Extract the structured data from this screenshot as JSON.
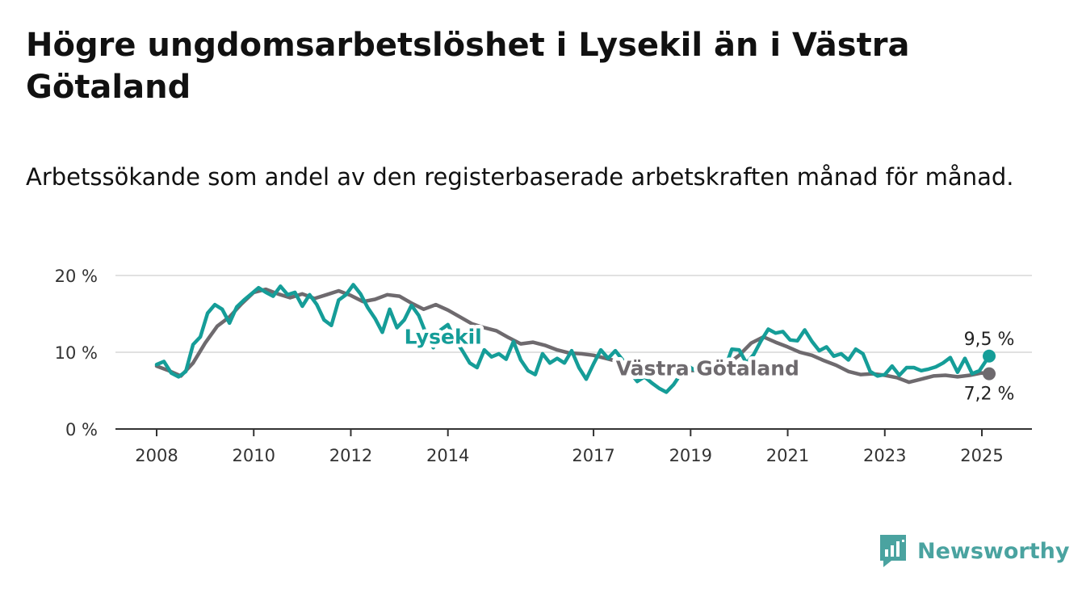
{
  "header": {
    "title": "Högre ungdomsarbetslöshet i Lysekil än i Västra Götaland",
    "subtitle": "Arbetssökande som andel av den registerbaserade arbetskraften månad för månad."
  },
  "brand": {
    "name": "Newsworthy",
    "icon": "bar-chart-logo-icon",
    "color": "#4aa3a0"
  },
  "chart_data": {
    "type": "line",
    "x_unit": "year",
    "y_unit": "percent",
    "ylim": [
      0,
      20
    ],
    "y_ticks": [
      {
        "value": 0,
        "label": "0 %"
      },
      {
        "value": 10,
        "label": "10 %"
      },
      {
        "value": 20,
        "label": "20 %"
      }
    ],
    "x_ticks": [
      {
        "value": 2008,
        "label": "2008"
      },
      {
        "value": 2010,
        "label": "2010"
      },
      {
        "value": 2012,
        "label": "2012"
      },
      {
        "value": 2014,
        "label": "2014"
      },
      {
        "value": 2017,
        "label": "2017"
      },
      {
        "value": 2019,
        "label": "2019"
      },
      {
        "value": 2021,
        "label": "2021"
      },
      {
        "value": 2023,
        "label": "2023"
      },
      {
        "value": 2025,
        "label": "2025"
      }
    ],
    "grid": true,
    "series": [
      {
        "name": "Västra Götaland",
        "color": "#6e6a6e",
        "end_label": "7,2 %",
        "x": [
          2008.0,
          2008.25,
          2008.5,
          2008.75,
          2009.0,
          2009.25,
          2009.5,
          2009.75,
          2010.0,
          2010.25,
          2010.5,
          2010.75,
          2011.0,
          2011.25,
          2011.5,
          2011.75,
          2012.0,
          2012.25,
          2012.5,
          2012.75,
          2013.0,
          2013.25,
          2013.5,
          2013.75,
          2014.0,
          2014.25,
          2014.5,
          2014.75,
          2015.0,
          2015.25,
          2015.5,
          2015.75,
          2016.0,
          2016.25,
          2016.5,
          2016.75,
          2017.0,
          2017.25,
          2017.5,
          2017.75,
          2018.0,
          2018.25,
          2018.5,
          2018.75,
          2019.0,
          2019.25,
          2019.5,
          2019.75,
          2020.0,
          2020.25,
          2020.5,
          2020.75,
          2021.0,
          2021.25,
          2021.5,
          2021.75,
          2022.0,
          2022.25,
          2022.5,
          2022.75,
          2023.0,
          2023.25,
          2023.5,
          2023.75,
          2024.0,
          2024.25,
          2024.5,
          2024.75,
          2025.0,
          2025.15
        ],
        "values": [
          8.2,
          7.6,
          6.9,
          8.6,
          11.2,
          13.4,
          14.6,
          16.3,
          17.8,
          18.2,
          17.6,
          17.1,
          17.6,
          17.0,
          17.5,
          18.0,
          17.4,
          16.6,
          16.9,
          17.5,
          17.3,
          16.4,
          15.6,
          16.2,
          15.5,
          14.6,
          13.7,
          13.2,
          12.8,
          11.9,
          11.1,
          11.3,
          10.9,
          10.3,
          9.9,
          9.8,
          9.6,
          9.2,
          8.8,
          8.5,
          8.2,
          7.9,
          7.5,
          7.4,
          7.6,
          7.7,
          7.9,
          8.4,
          9.6,
          11.2,
          12.0,
          11.3,
          10.7,
          10.0,
          9.6,
          8.9,
          8.3,
          7.5,
          7.1,
          7.2,
          7.0,
          6.7,
          6.1,
          6.5,
          6.9,
          7.0,
          6.8,
          7.0,
          7.3,
          7.2
        ]
      },
      {
        "name": "Lysekil",
        "color": "#159d98",
        "end_label": "9,5 %",
        "x": [
          2008.0,
          2008.15,
          2008.3,
          2008.45,
          2008.6,
          2008.75,
          2008.9,
          2009.05,
          2009.2,
          2009.35,
          2009.5,
          2009.65,
          2009.8,
          2009.95,
          2010.1,
          2010.25,
          2010.4,
          2010.55,
          2010.7,
          2010.85,
          2011.0,
          2011.15,
          2011.3,
          2011.45,
          2011.6,
          2011.75,
          2011.9,
          2012.05,
          2012.2,
          2012.35,
          2012.5,
          2012.65,
          2012.8,
          2012.95,
          2013.1,
          2013.25,
          2013.4,
          2013.55,
          2013.7,
          2013.85,
          2014.0,
          2014.15,
          2014.3,
          2014.45,
          2014.6,
          2014.75,
          2014.9,
          2015.05,
          2015.2,
          2015.35,
          2015.5,
          2015.65,
          2015.8,
          2015.95,
          2016.1,
          2016.25,
          2016.4,
          2016.55,
          2016.7,
          2016.85,
          2017.0,
          2017.15,
          2017.3,
          2017.45,
          2017.6,
          2017.75,
          2017.9,
          2018.05,
          2018.2,
          2018.35,
          2018.5,
          2018.65,
          2018.8,
          2018.95,
          2019.1,
          2019.25,
          2019.4,
          2019.55,
          2019.7,
          2019.85,
          2020.0,
          2020.15,
          2020.3,
          2020.45,
          2020.6,
          2020.75,
          2020.9,
          2021.05,
          2021.2,
          2021.35,
          2021.5,
          2021.65,
          2021.8,
          2021.95,
          2022.1,
          2022.25,
          2022.4,
          2022.55,
          2022.7,
          2022.85,
          2023.0,
          2023.15,
          2023.3,
          2023.45,
          2023.6,
          2023.75,
          2023.9,
          2024.05,
          2024.2,
          2024.35,
          2024.5,
          2024.65,
          2024.8,
          2024.95,
          2025.15
        ],
        "values": [
          8.4,
          8.8,
          7.3,
          6.8,
          7.5,
          11.0,
          12.0,
          15.1,
          16.2,
          15.6,
          13.8,
          15.9,
          16.8,
          17.6,
          18.4,
          17.8,
          17.3,
          18.6,
          17.5,
          17.8,
          16.0,
          17.5,
          16.2,
          14.2,
          13.5,
          16.8,
          17.5,
          18.8,
          17.6,
          15.8,
          14.4,
          12.6,
          15.6,
          13.2,
          14.2,
          16.1,
          14.8,
          12.4,
          10.6,
          12.9,
          13.6,
          11.6,
          10.2,
          8.6,
          8.0,
          10.3,
          9.4,
          9.8,
          9.1,
          11.4,
          9.0,
          7.6,
          7.1,
          9.8,
          8.6,
          9.2,
          8.6,
          10.2,
          8.0,
          6.5,
          8.5,
          10.3,
          9.2,
          10.2,
          9.0,
          7.4,
          6.2,
          6.8,
          6.0,
          5.3,
          4.8,
          5.8,
          7.2,
          8.2,
          7.6,
          7.1,
          7.9,
          8.4,
          7.8,
          10.4,
          10.3,
          8.6,
          9.7,
          11.5,
          13.0,
          12.5,
          12.7,
          11.6,
          11.5,
          12.9,
          11.4,
          10.2,
          10.7,
          9.5,
          9.8,
          9.0,
          10.4,
          9.8,
          7.5,
          6.9,
          7.1,
          8.2,
          7.0,
          8.0,
          8.0,
          7.6,
          7.8,
          8.1,
          8.6,
          9.3,
          7.4,
          9.2,
          7.2,
          7.6,
          9.5
        ]
      }
    ],
    "series_labels": [
      {
        "series": "Lysekil",
        "text": "Lysekil",
        "at_x": 2013.9,
        "at_y": 11.1,
        "color": "#159d98"
      },
      {
        "series": "Västra Götaland",
        "text": "Västra Götaland",
        "at_x": 2019.35,
        "at_y": 7.0,
        "color": "#6e6a6e"
      }
    ]
  }
}
